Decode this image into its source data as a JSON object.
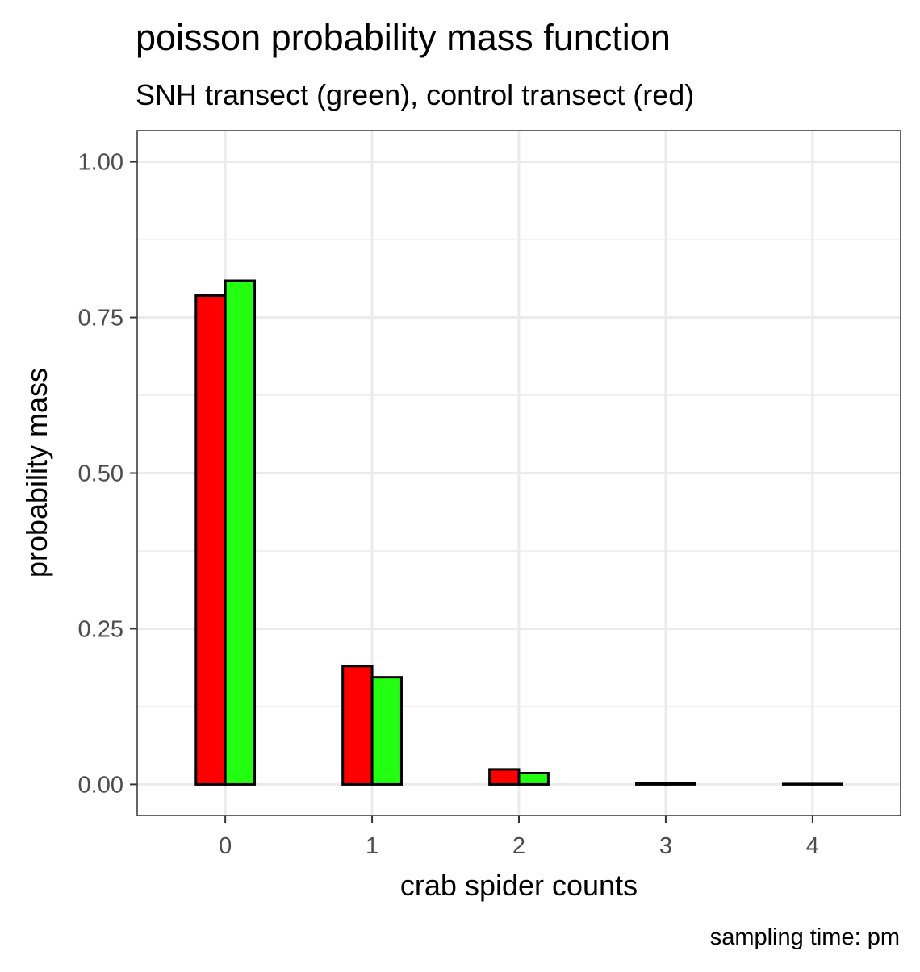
{
  "chart_data": {
    "type": "bar",
    "title": "poisson probability mass function",
    "subtitle": "SNH transect (green), control transect (red)",
    "xlabel": "crab spider counts",
    "ylabel": "probability mass",
    "caption": "sampling time: pm",
    "categories": [
      "0",
      "1",
      "2",
      "3",
      "4"
    ],
    "x_ticks": [
      "0",
      "1",
      "2",
      "3",
      "4"
    ],
    "y_ticks": [
      "0.00",
      "0.25",
      "0.50",
      "0.75",
      "1.00"
    ],
    "ylim": [
      -0.05,
      1.05
    ],
    "grid": true,
    "legend": "none",
    "series": [
      {
        "key": "control",
        "color": "#ff0000",
        "values": [
          0.785,
          0.19,
          0.024,
          0.002,
          0.0001
        ]
      },
      {
        "key": "snh",
        "color": "#22ff11",
        "values": [
          0.809,
          0.172,
          0.018,
          0.0013,
          0.0001
        ]
      }
    ]
  }
}
